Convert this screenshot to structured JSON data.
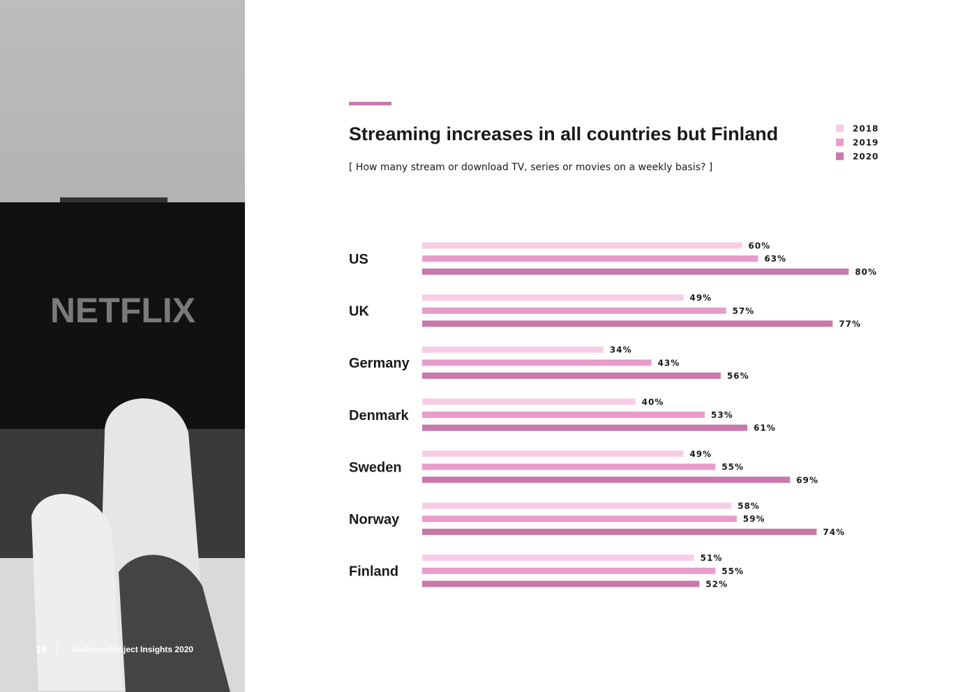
{
  "page": {
    "number": "18",
    "footer": "AudienceProject Insights 2020",
    "photo_text": "NETFLIX"
  },
  "chart_data": {
    "type": "bar",
    "orientation": "horizontal",
    "title": "Streaming increases in all countries but Finland",
    "subtitle": "[ How many stream or download TV, series or movies on a weekly basis? ]",
    "categories": [
      "US",
      "UK",
      "Germany",
      "Denmark",
      "Sweden",
      "Norway",
      "Finland"
    ],
    "series": [
      {
        "name": "2018",
        "color": "#f7cde6",
        "values": [
          60,
          49,
          34,
          40,
          49,
          58,
          51
        ],
        "value_labels": [
          "60%",
          "49%",
          "34%",
          "40%",
          "49%",
          "58%",
          "51%"
        ]
      },
      {
        "name": "2019",
        "color": "#e89ccb",
        "values": [
          63,
          57,
          43,
          53,
          55,
          59,
          55
        ],
        "value_labels": [
          "63%",
          "57%",
          "43%",
          "53%",
          "55%",
          "59%",
          "55%"
        ]
      },
      {
        "name": "2020",
        "color": "#c878aa",
        "values": [
          80,
          77,
          56,
          61,
          69,
          74,
          52
        ],
        "value_labels": [
          "80%",
          "77%",
          "56%",
          "61%",
          "69%",
          "74%",
          "52%"
        ]
      }
    ],
    "xlim": [
      0,
      100
    ],
    "legend": "top-right",
    "grid": false
  }
}
